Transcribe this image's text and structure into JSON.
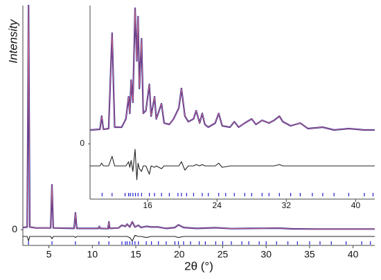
{
  "chart_data": [
    {
      "type": "line",
      "xlabel": "2θ (°)",
      "ylabel": "Intensity",
      "xlim": [
        2,
        42.5
      ],
      "ylim": [
        -7,
        100
      ],
      "xticks": [
        5,
        10,
        15,
        20,
        25,
        30,
        35,
        40
      ],
      "yticks": [
        0
      ],
      "x": [
        2.0,
        2.5,
        2.65,
        2.8,
        3.5,
        5.2,
        5.35,
        5.5,
        7.9,
        8.05,
        8.2,
        10.7,
        10.8,
        10.9,
        11.8,
        11.9,
        12.0,
        13.0,
        13.4,
        13.8,
        14.0,
        14.3,
        14.6,
        14.9,
        15.3,
        15.6,
        16.2,
        16.8,
        17.6,
        18.5,
        19.5,
        19.9,
        20.5,
        22.0,
        24.2,
        26.0,
        28.0,
        31.5,
        33.0,
        36.0,
        40.0,
        42.5
      ],
      "series": [
        {
          "color": "#2b2b9a",
          "values": [
            1,
            1.2,
            100,
            1.2,
            0.8,
            0.8,
            20,
            0.8,
            0.6,
            7.5,
            0.6,
            0.6,
            1.5,
            0.6,
            0.5,
            3.5,
            0.6,
            0.8,
            2,
            1.5,
            2.5,
            1.2,
            3.5,
            1.2,
            2,
            1,
            1.5,
            1.2,
            1.2,
            0.6,
            1,
            2.2,
            1,
            0.6,
            0.9,
            0.5,
            0.6,
            0.7,
            0.4,
            0.3,
            0.3,
            0.3
          ]
        },
        {
          "color": "#222222",
          "values": [
            -3,
            -3,
            -5,
            -3,
            -3,
            -3,
            -4,
            -3,
            -3,
            -3.5,
            -3,
            -3,
            -3,
            -3,
            -3,
            -3.5,
            -3,
            -3,
            -3,
            -3,
            -3,
            -3.5,
            -5,
            -2.5,
            -3,
            -3,
            -3.5,
            -3,
            -3,
            -3,
            -3,
            -3.5,
            -3,
            -3,
            -3,
            -3,
            -3,
            -3,
            -3,
            -3,
            -3,
            -3
          ]
        }
      ],
      "reflection_color": "#1f1fd6",
      "reflections": [
        2.65,
        5.35,
        8.05,
        10.75,
        11.9,
        13.4,
        13.8,
        14.0,
        14.3,
        14.6,
        14.9,
        15.3,
        16.2,
        16.8,
        17.6,
        18.5,
        19.5,
        19.9,
        20.5,
        21.3,
        22.3,
        23.0,
        24.2,
        25.0,
        26.0,
        27.2,
        28.0,
        29.2,
        30.0,
        31.2,
        32.5,
        33.6,
        35.0,
        36.2,
        37.5,
        39.2,
        41.0,
        42.0
      ]
    },
    {
      "type": "line",
      "xlim": [
        9.36,
        42.2
      ],
      "ylim": [
        -40,
        100
      ],
      "xticks": [
        16,
        24,
        32,
        40
      ],
      "yticks": [
        0
      ],
      "x": [
        9.4,
        10.5,
        10.7,
        10.9,
        11.5,
        11.9,
        12.2,
        13.0,
        13.5,
        13.8,
        13.95,
        14.1,
        14.3,
        14.55,
        14.75,
        14.9,
        15.05,
        15.3,
        15.5,
        15.8,
        16.2,
        16.4,
        16.8,
        17.0,
        17.6,
        17.9,
        18.5,
        19.0,
        19.6,
        19.9,
        20.3,
        20.7,
        21.3,
        21.6,
        22.0,
        22.3,
        22.6,
        23.0,
        23.8,
        24.2,
        24.6,
        25.5,
        26.0,
        26.5,
        27.2,
        28.0,
        28.5,
        29.2,
        30.0,
        30.6,
        31.2,
        31.6,
        32.5,
        33.6,
        34.5,
        36.2,
        37.5,
        39.2,
        41.0,
        42.2
      ],
      "series": [
        {
          "color": "#2b2b9a",
          "values": [
            10,
            10.5,
            20,
            10.5,
            11,
            80,
            12,
            12,
            18,
            34,
            22,
            46,
            30,
            98,
            60,
            92,
            40,
            76,
            22,
            24,
            43,
            20,
            34,
            18,
            29,
            15,
            14,
            18,
            26,
            40,
            20,
            16,
            18,
            24,
            15,
            22,
            14,
            12,
            15,
            22,
            13,
            12,
            16,
            12,
            15,
            18,
            14,
            17,
            15,
            17,
            20,
            16,
            13,
            15,
            11,
            12,
            10,
            11,
            10,
            10
          ]
        },
        {
          "color": "#222222",
          "values": [
            -16,
            -16,
            -14,
            -16,
            -16,
            -9,
            -16,
            -16,
            -16,
            -13,
            -17,
            -12,
            -20,
            -4,
            -26,
            -14,
            -18,
            -20,
            -16,
            -16,
            -22,
            -16,
            -17,
            -16,
            -18,
            -16,
            -16,
            -16,
            -16,
            -13,
            -19,
            -16,
            -16,
            -15,
            -16,
            -15,
            -16,
            -16,
            -16,
            -14,
            -17,
            -16,
            -16,
            -16,
            -16,
            -16,
            -16,
            -16,
            -16,
            -16,
            -15,
            -16,
            -16,
            -16,
            -16,
            -16,
            -16,
            -16,
            -16,
            -16
          ]
        }
      ],
      "reflection_color": "#1f1fd6",
      "reflections": [
        10.75,
        11.9,
        13.4,
        13.8,
        14.0,
        14.3,
        14.6,
        14.9,
        15.3,
        16.2,
        16.8,
        17.6,
        18.5,
        19.5,
        19.9,
        20.5,
        21.3,
        22.3,
        23.0,
        24.2,
        25.0,
        26.0,
        27.2,
        28.0,
        29.2,
        30.0,
        31.2,
        32.5,
        33.6,
        35.0,
        36.2,
        37.5,
        39.2,
        41.0,
        42.0
      ]
    }
  ]
}
